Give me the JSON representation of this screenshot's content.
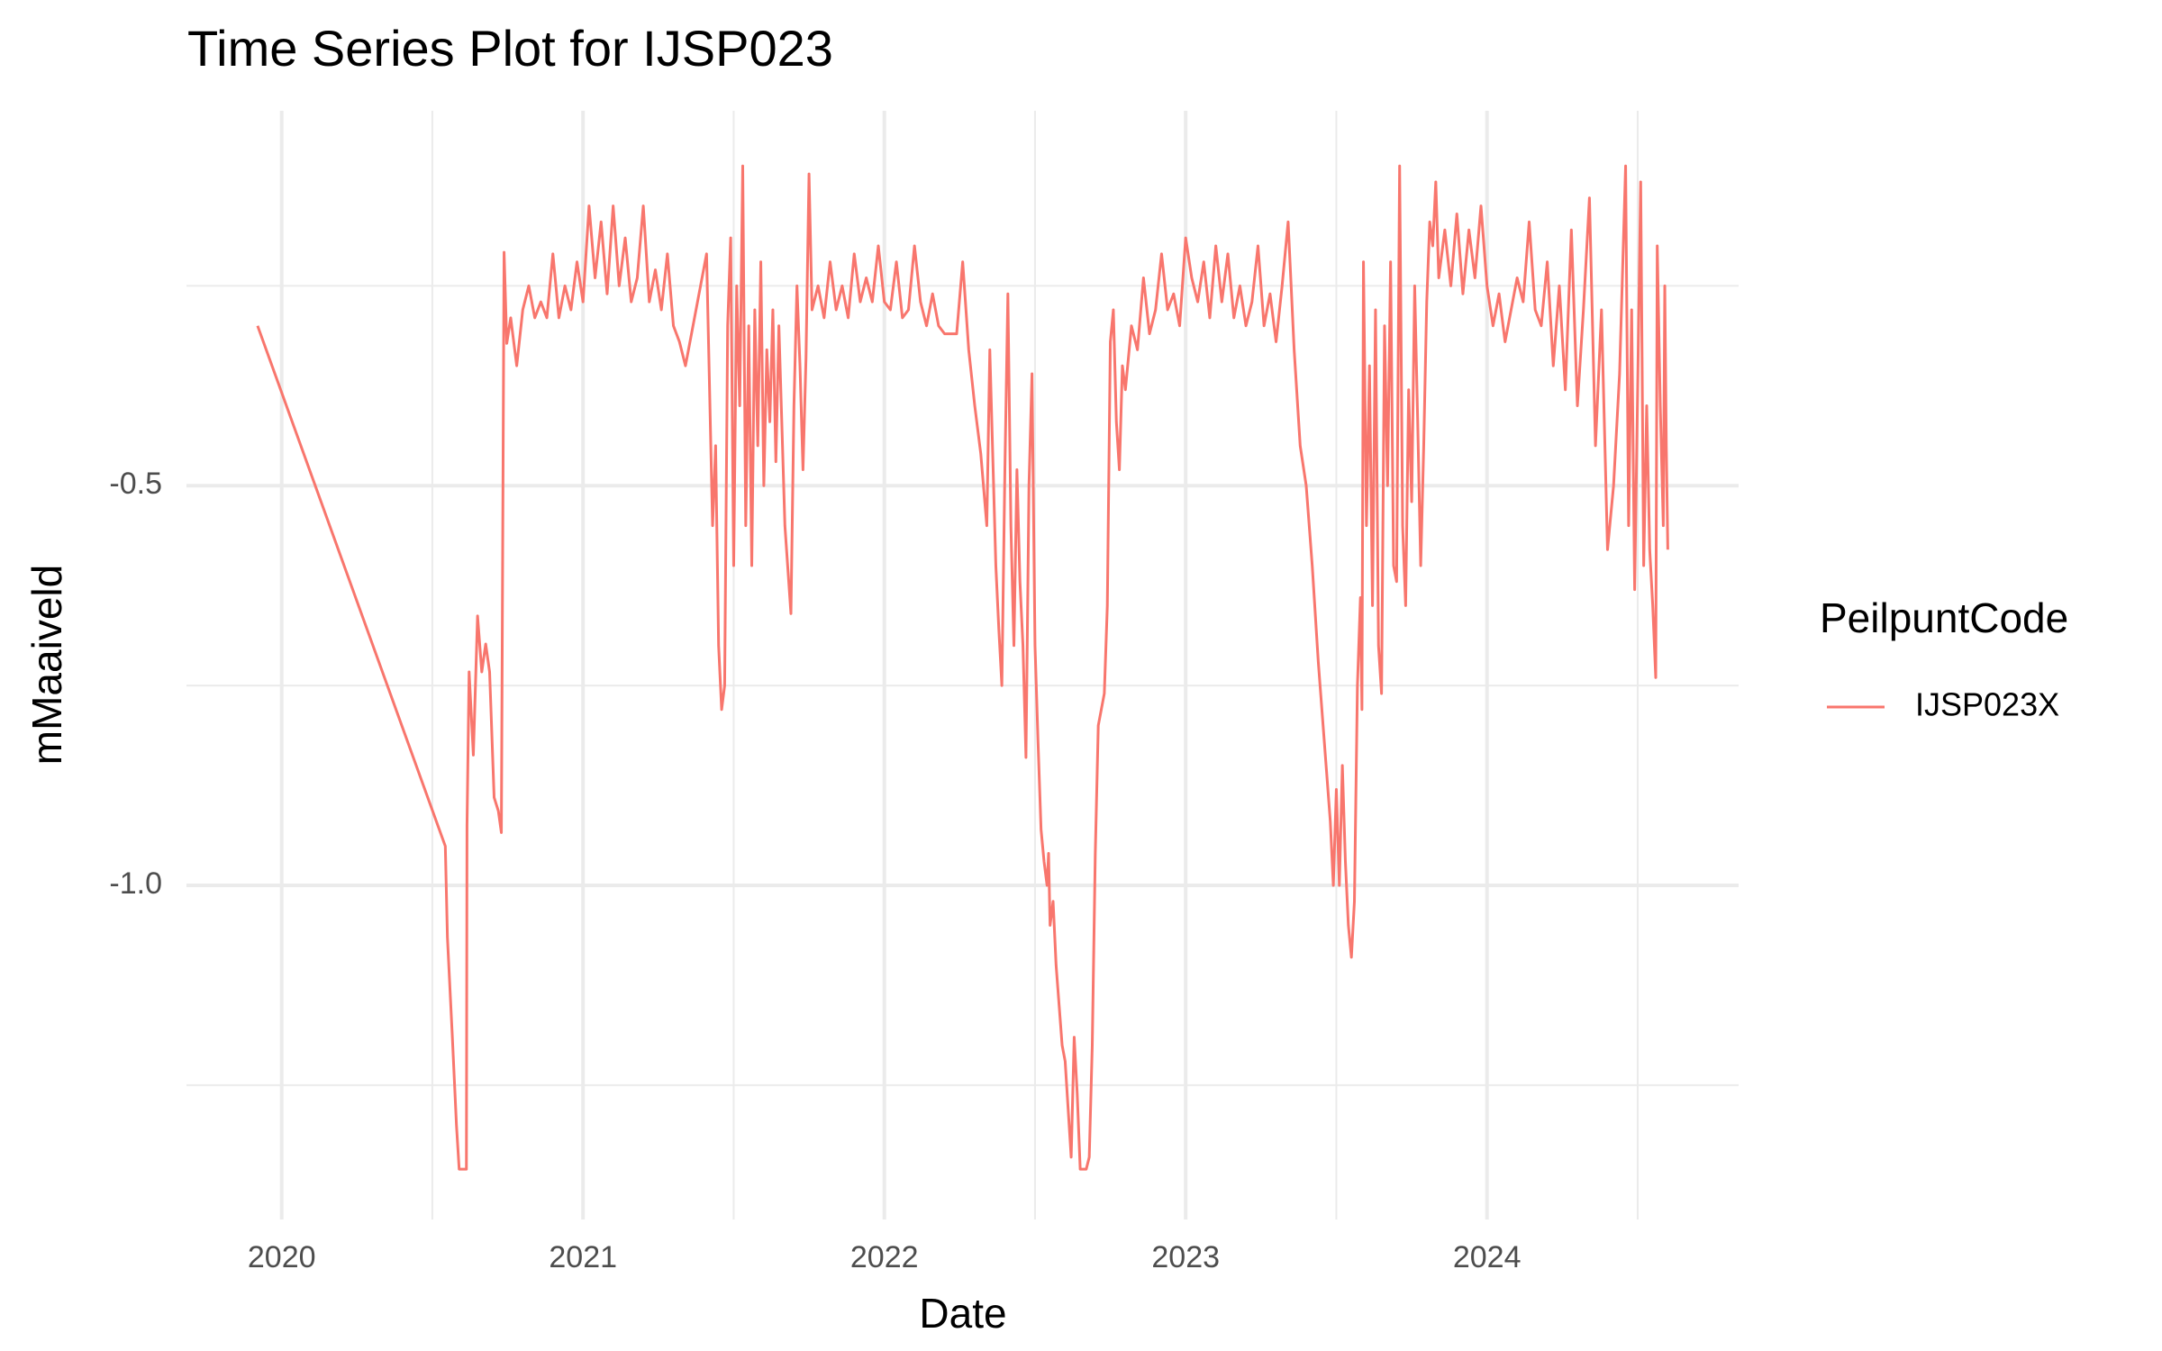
{
  "chart_data": {
    "type": "line",
    "title": "Time Series Plot for IJSP023",
    "x_label": "Date",
    "y_label": "mMaaiveld",
    "legend_title": "PeilpuntCode",
    "legend_position": "right",
    "grid": true,
    "xlim": [
      2019.684,
      2024.835
    ],
    "xticks": [
      2020,
      2021,
      2022,
      2023,
      2024
    ],
    "minor_xticks": [
      2020.5,
      2021.5,
      2022.5,
      2023.5,
      2024.5
    ],
    "ylim": [
      -1.418,
      -0.031
    ],
    "yticks": [
      -0.5,
      {
        "value": -1,
        "label": "-1.0"
      }
    ],
    "minor_yticks": [
      -0.25,
      -0.75,
      -1.25
    ],
    "x": [
      2019.92,
      2020.543,
      2020.55,
      2020.566,
      2020.58,
      2020.589,
      2020.613,
      2020.615,
      2020.622,
      2020.636,
      2020.65,
      2020.664,
      2020.677,
      2020.69,
      2020.705,
      2020.719,
      2020.729,
      2020.738,
      2020.747,
      2020.76,
      2020.78,
      2020.8,
      2020.82,
      2020.84,
      2020.86,
      2020.88,
      2020.9,
      2020.92,
      2020.94,
      2020.96,
      2020.98,
      2021.0,
      2021.02,
      2021.04,
      2021.06,
      2021.08,
      2021.1,
      2021.12,
      2021.14,
      2021.16,
      2021.18,
      2021.2,
      2021.22,
      2021.24,
      2021.26,
      2021.28,
      2021.3,
      2021.32,
      2021.34,
      2021.41,
      2021.42,
      2021.43,
      2021.44,
      2021.45,
      2021.46,
      2021.47,
      2021.48,
      2021.49,
      2021.5,
      2021.51,
      2021.52,
      2021.53,
      2021.54,
      2021.55,
      2021.56,
      2021.57,
      2021.58,
      2021.59,
      2021.6,
      2021.61,
      2021.62,
      2021.63,
      2021.64,
      2021.65,
      2021.67,
      2021.69,
      2021.7,
      2021.71,
      2021.72,
      2021.73,
      2021.74,
      2021.75,
      2021.76,
      2021.78,
      2021.8,
      2021.82,
      2021.84,
      2021.86,
      2021.88,
      2021.9,
      2021.92,
      2021.94,
      2021.96,
      2021.98,
      2022.0,
      2022.02,
      2022.04,
      2022.06,
      2022.08,
      2022.1,
      2022.12,
      2022.14,
      2022.16,
      2022.18,
      2022.2,
      2022.22,
      2022.24,
      2022.26,
      2022.28,
      2022.3,
      2022.32,
      2022.34,
      2022.35,
      2022.37,
      2022.38,
      2022.39,
      2022.4,
      2022.41,
      2022.42,
      2022.43,
      2022.44,
      2022.45,
      2022.46,
      2022.47,
      2022.48,
      2022.49,
      2022.5,
      2022.51,
      2022.52,
      2022.53,
      2022.54,
      2022.545,
      2022.55,
      2022.56,
      2022.57,
      2022.58,
      2022.59,
      2022.6,
      2022.61,
      2022.62,
      2022.63,
      2022.64,
      2022.65,
      2022.67,
      2022.68,
      2022.69,
      2022.7,
      2022.71,
      2022.72,
      2022.73,
      2022.74,
      2022.75,
      2022.76,
      2022.77,
      2022.78,
      2022.79,
      2022.8,
      2022.82,
      2022.84,
      2022.86,
      2022.88,
      2022.9,
      2022.92,
      2022.94,
      2022.96,
      2022.98,
      2023.0,
      2023.02,
      2023.04,
      2023.06,
      2023.08,
      2023.1,
      2023.12,
      2023.14,
      2023.16,
      2023.18,
      2023.2,
      2023.22,
      2023.24,
      2023.26,
      2023.28,
      2023.3,
      2023.32,
      2023.34,
      2023.36,
      2023.38,
      2023.4,
      2023.42,
      2023.44,
      2023.46,
      2023.48,
      2023.49,
      2023.5,
      2023.51,
      2023.52,
      2023.53,
      2023.54,
      2023.55,
      2023.56,
      2023.57,
      2023.58,
      2023.585,
      2023.59,
      2023.6,
      2023.61,
      2023.62,
      2023.63,
      2023.64,
      2023.65,
      2023.66,
      2023.67,
      2023.68,
      2023.69,
      2023.7,
      2023.71,
      2023.72,
      2023.73,
      2023.74,
      2023.75,
      2023.76,
      2023.77,
      2023.78,
      2023.79,
      2023.8,
      2023.81,
      2023.82,
      2023.83,
      2023.84,
      2023.86,
      2023.88,
      2023.9,
      2023.92,
      2023.94,
      2023.96,
      2023.98,
      2024.0,
      2024.02,
      2024.04,
      2024.06,
      2024.08,
      2024.1,
      2024.12,
      2024.14,
      2024.16,
      2024.18,
      2024.2,
      2024.22,
      2024.24,
      2024.26,
      2024.28,
      2024.3,
      2024.32,
      2024.34,
      2024.36,
      2024.38,
      2024.4,
      2024.42,
      2024.44,
      2024.46,
      2024.47,
      2024.48,
      2024.49,
      2024.5,
      2024.51,
      2024.52,
      2024.53,
      2024.54,
      2024.55,
      2024.56,
      2024.565,
      2024.575,
      2024.585,
      2024.59,
      2024.595,
      2024.6
    ],
    "series": [
      {
        "name": "IJSP023X",
        "color": "#F8766D",
        "values": [
          -0.3,
          -0.951,
          -1.065,
          -1.187,
          -1.3,
          -1.355,
          -1.355,
          -0.925,
          -0.733,
          -0.837,
          -0.663,
          -0.733,
          -0.698,
          -0.733,
          -0.89,
          -0.907,
          -0.934,
          -0.208,
          -0.322,
          -0.29,
          -0.35,
          -0.28,
          -0.25,
          -0.29,
          -0.27,
          -0.29,
          -0.21,
          -0.29,
          -0.25,
          -0.28,
          -0.22,
          -0.27,
          -0.15,
          -0.24,
          -0.17,
          -0.26,
          -0.15,
          -0.25,
          -0.19,
          -0.27,
          -0.24,
          -0.15,
          -0.27,
          -0.23,
          -0.28,
          -0.21,
          -0.3,
          -0.32,
          -0.35,
          -0.21,
          -0.38,
          -0.55,
          -0.45,
          -0.7,
          -0.78,
          -0.75,
          -0.3,
          -0.19,
          -0.6,
          -0.25,
          -0.4,
          -0.1,
          -0.55,
          -0.3,
          -0.6,
          -0.28,
          -0.45,
          -0.22,
          -0.5,
          -0.33,
          -0.42,
          -0.28,
          -0.47,
          -0.3,
          -0.55,
          -0.66,
          -0.4,
          -0.25,
          -0.35,
          -0.48,
          -0.34,
          -0.11,
          -0.28,
          -0.25,
          -0.29,
          -0.22,
          -0.28,
          -0.25,
          -0.29,
          -0.21,
          -0.27,
          -0.24,
          -0.27,
          -0.2,
          -0.27,
          -0.28,
          -0.22,
          -0.29,
          -0.28,
          -0.2,
          -0.27,
          -0.3,
          -0.26,
          -0.3,
          -0.31,
          -0.31,
          -0.31,
          -0.22,
          -0.33,
          -0.4,
          -0.46,
          -0.55,
          -0.33,
          -0.6,
          -0.68,
          -0.75,
          -0.48,
          -0.26,
          -0.55,
          -0.7,
          -0.48,
          -0.62,
          -0.7,
          -0.84,
          -0.5,
          -0.36,
          -0.7,
          -0.82,
          -0.93,
          -0.97,
          -1.0,
          -0.96,
          -1.05,
          -1.02,
          -1.1,
          -1.15,
          -1.2,
          -1.22,
          -1.28,
          -1.34,
          -1.19,
          -1.26,
          -1.355,
          -1.355,
          -1.34,
          -1.2,
          -0.96,
          -0.8,
          -0.78,
          -0.76,
          -0.65,
          -0.32,
          -0.28,
          -0.42,
          -0.48,
          -0.35,
          -0.38,
          -0.3,
          -0.33,
          -0.24,
          -0.31,
          -0.28,
          -0.21,
          -0.28,
          -0.26,
          -0.3,
          -0.19,
          -0.24,
          -0.27,
          -0.22,
          -0.29,
          -0.2,
          -0.27,
          -0.21,
          -0.29,
          -0.25,
          -0.3,
          -0.27,
          -0.2,
          -0.3,
          -0.26,
          -0.32,
          -0.25,
          -0.17,
          -0.33,
          -0.45,
          -0.5,
          -0.6,
          -0.72,
          -0.82,
          -0.92,
          -1.0,
          -0.88,
          -1.0,
          -0.85,
          -0.97,
          -1.05,
          -1.09,
          -1.02,
          -0.75,
          -0.64,
          -0.78,
          -0.22,
          -0.55,
          -0.35,
          -0.65,
          -0.28,
          -0.7,
          -0.76,
          -0.3,
          -0.5,
          -0.22,
          -0.6,
          -0.62,
          -0.1,
          -0.55,
          -0.65,
          -0.38,
          -0.52,
          -0.25,
          -0.42,
          -0.6,
          -0.45,
          -0.27,
          -0.17,
          -0.2,
          -0.12,
          -0.24,
          -0.18,
          -0.25,
          -0.16,
          -0.26,
          -0.18,
          -0.24,
          -0.15,
          -0.25,
          -0.3,
          -0.26,
          -0.32,
          -0.28,
          -0.24,
          -0.27,
          -0.17,
          -0.28,
          -0.3,
          -0.22,
          -0.35,
          -0.25,
          -0.38,
          -0.18,
          -0.4,
          -0.28,
          -0.14,
          -0.45,
          -0.28,
          -0.58,
          -0.5,
          -0.36,
          -0.1,
          -0.55,
          -0.28,
          -0.63,
          -0.38,
          -0.12,
          -0.6,
          -0.4,
          -0.58,
          -0.65,
          -0.74,
          -0.2,
          -0.4,
          -0.55,
          -0.25,
          -0.45,
          -0.58
        ]
      }
    ]
  }
}
